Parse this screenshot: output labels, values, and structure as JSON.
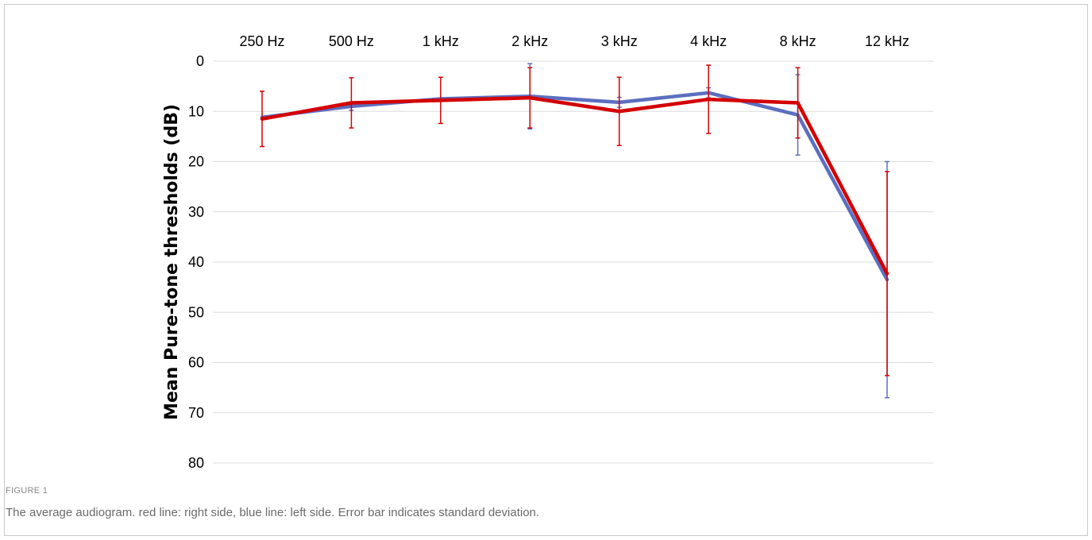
{
  "figure": {
    "label": "FIGURE 1",
    "caption": "The average audiogram. red line: right side, blue line: left side. Error bar indicates standard deviation."
  },
  "colors": {
    "right": "#d40000",
    "left": "#5b6fc0",
    "grid": "#dcdcdc"
  },
  "chart_data": {
    "type": "line",
    "categories": [
      "250 Hz",
      "500 Hz",
      "1 kHz",
      "2 kHz",
      "3 kHz",
      "4 kHz",
      "8 kHz",
      "12 kHz"
    ],
    "ylabel": "Mean Pure-tone thresholds (dB)",
    "xlabel": "",
    "title": "",
    "ylim": [
      0,
      80
    ],
    "y_ticks": [
      0,
      10,
      20,
      30,
      40,
      50,
      60,
      70,
      80
    ],
    "y_inverted": true,
    "x_axis_position": "top",
    "grid": true,
    "legend": "none",
    "series": [
      {
        "side": "left",
        "color": "#5b6fc0",
        "values": [
          11.2,
          9.0,
          7.5,
          7.0,
          8.2,
          6.3,
          10.7,
          43.5
        ],
        "sd": [
          0,
          0.8,
          0,
          6.5,
          1.0,
          1.0,
          8.0,
          23.5
        ]
      },
      {
        "side": "right",
        "color": "#d40000",
        "values": [
          11.5,
          8.3,
          7.8,
          7.3,
          10.0,
          7.6,
          8.3,
          42.3
        ],
        "sd": [
          5.5,
          5.0,
          4.6,
          6.0,
          6.8,
          6.8,
          7.0,
          20.3
        ]
      }
    ]
  }
}
